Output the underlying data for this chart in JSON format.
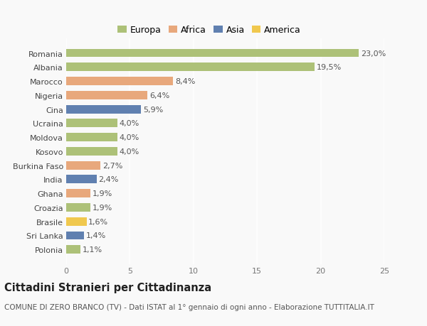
{
  "categories": [
    "Polonia",
    "Sri Lanka",
    "Brasile",
    "Croazia",
    "Ghana",
    "India",
    "Burkina Faso",
    "Kosovo",
    "Moldova",
    "Ucraina",
    "Cina",
    "Nigeria",
    "Marocco",
    "Albania",
    "Romania"
  ],
  "values": [
    1.1,
    1.4,
    1.6,
    1.9,
    1.9,
    2.4,
    2.7,
    4.0,
    4.0,
    4.0,
    5.9,
    6.4,
    8.4,
    19.5,
    23.0
  ],
  "labels": [
    "1,1%",
    "1,4%",
    "1,6%",
    "1,9%",
    "1,9%",
    "2,4%",
    "2,7%",
    "4,0%",
    "4,0%",
    "4,0%",
    "5,9%",
    "6,4%",
    "8,4%",
    "19,5%",
    "23,0%"
  ],
  "continents": [
    "Europa",
    "Asia",
    "America",
    "Europa",
    "Africa",
    "Asia",
    "Africa",
    "Europa",
    "Europa",
    "Europa",
    "Asia",
    "Africa",
    "Africa",
    "Europa",
    "Europa"
  ],
  "colors": {
    "Europa": "#adc178",
    "Africa": "#e8a87c",
    "Asia": "#6080b0",
    "America": "#f0c84e"
  },
  "legend_order": [
    "Europa",
    "Africa",
    "Asia",
    "America"
  ],
  "xlim": [
    0,
    25
  ],
  "xticks": [
    0,
    5,
    10,
    15,
    20,
    25
  ],
  "title": "Cittadini Stranieri per Cittadinanza",
  "subtitle": "COMUNE DI ZERO BRANCO (TV) - Dati ISTAT al 1° gennaio di ogni anno - Elaborazione TUTTITALIA.IT",
  "background_color": "#f9f9f9",
  "grid_color": "#e8e8e8",
  "title_fontsize": 10.5,
  "subtitle_fontsize": 7.5,
  "label_fontsize": 8,
  "tick_fontsize": 8,
  "legend_fontsize": 9
}
